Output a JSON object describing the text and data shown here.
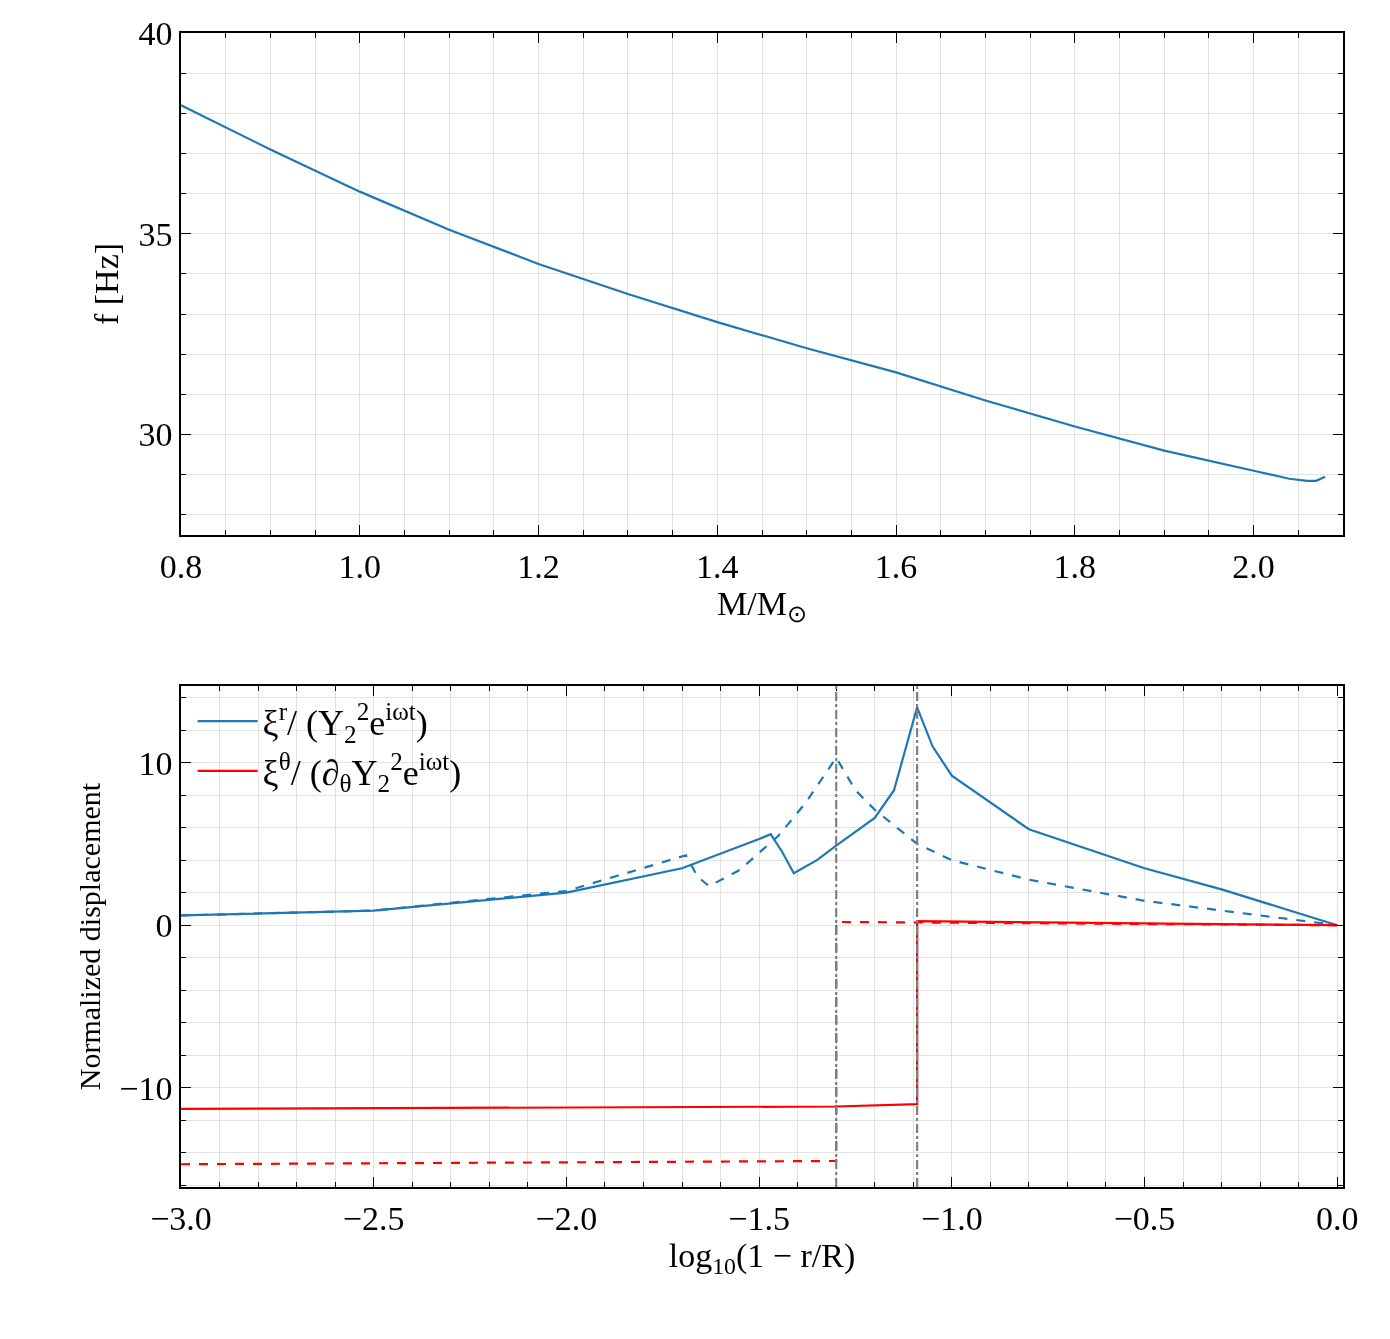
{
  "chart_data": [
    {
      "type": "line",
      "xlabel": "M/M$_{⊙}$",
      "ylabel": "f [Hz]",
      "xlim": [
        0.8,
        2.1
      ],
      "ylim": [
        27.5,
        40
      ],
      "xticks": [
        0.8,
        {
          "value": 1.0,
          "label": "1.0"
        },
        1.2,
        1.4,
        1.6,
        1.8,
        {
          "value": 2.0,
          "label": "2.0"
        }
      ],
      "yticks": [
        30,
        35,
        40
      ],
      "grid": true,
      "series": [
        {
          "color": "#1f77b4",
          "line_style": "solid",
          "x": [
            0.8,
            0.9,
            1.0,
            1.1,
            1.2,
            1.3,
            1.4,
            1.5,
            1.6,
            1.7,
            1.8,
            1.9,
            2.0,
            2.04,
            2.06,
            2.07,
            2.08
          ],
          "values": [
            38.2,
            37.1,
            36.05,
            35.1,
            34.25,
            33.5,
            32.8,
            32.15,
            31.55,
            30.85,
            30.2,
            29.6,
            29.1,
            28.9,
            28.85,
            28.85,
            28.95
          ]
        }
      ]
    },
    {
      "type": "line",
      "xlabel": "log$_{10}$(1 − r/R)",
      "ylabel": "Normalized displacement",
      "xlim": [
        -3.0,
        0.015
      ],
      "ylim": [
        -16.1,
        14.7
      ],
      "xticks": [
        {
          "value": -3.0,
          "label": "−3.0"
        },
        {
          "value": -2.5,
          "label": "−2.5"
        },
        {
          "value": -2.0,
          "label": "−2.0"
        },
        {
          "value": -1.5,
          "label": "−1.5"
        },
        {
          "value": -1.0,
          "label": "−1.0"
        },
        {
          "value": -0.5,
          "label": "−0.5"
        },
        {
          "value": 0.0,
          "label": "0.0"
        }
      ],
      "yticks": [
        {
          "value": -10,
          "label": "−10"
        },
        0,
        10
      ],
      "grid": true,
      "legend": "top left",
      "ref_lines": [
        {
          "axis": "x",
          "value": -1.3,
          "color": "#808080",
          "line_style": "dashdot"
        },
        {
          "axis": "x",
          "value": -1.09,
          "color": "#808080",
          "line_style": "dashdot"
        }
      ],
      "series": [
        {
          "name": "ξ$^{r}$/ (Y$_{2}$$^{2}$e$^{iωt}$)",
          "color": "#1f77b4",
          "line_style": "solid",
          "x": [
            -3.0,
            -2.5,
            -2.0,
            -1.7,
            -1.5,
            -1.47,
            -1.44,
            -1.41,
            -1.35,
            -1.3,
            -1.2,
            -1.15,
            -1.09,
            -1.05,
            -1.0,
            -0.8,
            -0.5,
            -0.3,
            0.0
          ],
          "values": [
            0.6,
            0.9,
            2.0,
            3.5,
            5.3,
            5.6,
            4.5,
            3.2,
            4.0,
            4.9,
            6.6,
            8.3,
            13.4,
            11.0,
            9.2,
            5.9,
            3.5,
            2.2,
            0.0
          ]
        },
        {
          "name": "ξ$^{θ}$/ (∂$_{θ}$Y$_{2}$$^{2}$e$^{iωt}$)",
          "color": "#ff0000",
          "line_style": "solid",
          "x": [
            -3.0,
            -1.3,
            -1.09,
            -1.09,
            0.0
          ],
          "values": [
            -11.3,
            -11.15,
            -11.0,
            0.25,
            0.0
          ]
        },
        {
          "color": "#1f77b4",
          "line_style": "dashed",
          "x": [
            -3.0,
            -2.5,
            -2.0,
            -1.69,
            -1.66,
            -1.63,
            -1.55,
            -1.45,
            -1.38,
            -1.3,
            -1.25,
            -1.2,
            -1.09,
            -1.0,
            -0.8,
            -0.5,
            -0.2,
            0.0
          ],
          "values": [
            0.6,
            0.9,
            2.1,
            4.3,
            3.0,
            2.4,
            3.4,
            5.5,
            7.5,
            10.3,
            8.3,
            7.1,
            5.0,
            4.0,
            2.8,
            1.5,
            0.6,
            0.0
          ]
        },
        {
          "color": "#ff0000",
          "line_style": "dashed",
          "x": [
            -3.0,
            -1.3,
            -1.3,
            0.0
          ],
          "values": [
            -14.7,
            -14.5,
            0.2,
            0.0
          ]
        }
      ]
    }
  ]
}
